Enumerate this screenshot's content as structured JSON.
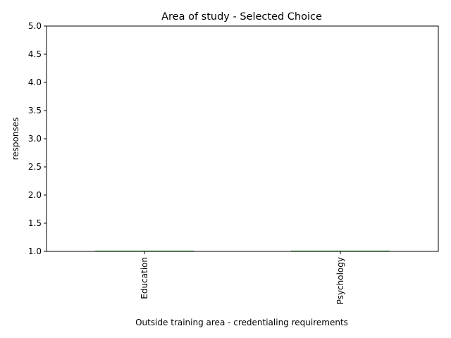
{
  "chart_data": {
    "type": "bar",
    "title": "Area of study - Selected Choice",
    "xlabel": "Outside training area - credentialing requirements",
    "ylabel": "responses",
    "categories": [
      "Education",
      "Psychology"
    ],
    "series": [
      {
        "values": [
          1,
          1
        ]
      }
    ],
    "ylim": [
      1.0,
      5.0
    ],
    "yticks": [
      "1.0",
      "1.5",
      "2.0",
      "2.5",
      "3.0",
      "3.5",
      "4.0",
      "4.5",
      "5.0"
    ],
    "grid": false,
    "legend": "none",
    "colors": {
      "bar_edge": "#2ca02c",
      "bar_fill": "#1f77b4",
      "axis": "#000000"
    }
  }
}
